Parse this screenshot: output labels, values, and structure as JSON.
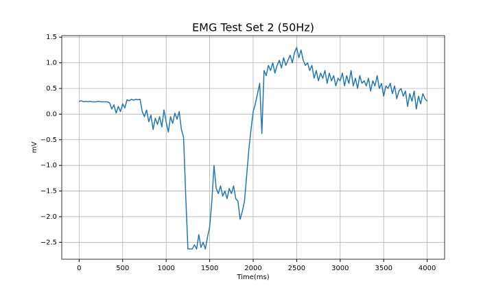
{
  "chart_data": {
    "type": "line",
    "title": "EMG Test Set 2 (50Hz)",
    "x_label": "Time(ms)",
    "y_label": "mV",
    "x": [
      0,
      25,
      50,
      75,
      100,
      125,
      150,
      175,
      200,
      225,
      250,
      275,
      300,
      325,
      350,
      375,
      400,
      425,
      450,
      475,
      500,
      525,
      550,
      575,
      600,
      625,
      650,
      675,
      700,
      725,
      750,
      775,
      800,
      825,
      850,
      875,
      900,
      925,
      950,
      975,
      1000,
      1025,
      1050,
      1075,
      1100,
      1125,
      1150,
      1175,
      1200,
      1225,
      1250,
      1275,
      1300,
      1325,
      1350,
      1375,
      1400,
      1425,
      1450,
      1475,
      1500,
      1525,
      1550,
      1575,
      1600,
      1625,
      1650,
      1675,
      1700,
      1725,
      1750,
      1775,
      1800,
      1825,
      1850,
      1875,
      1900,
      1925,
      1950,
      1975,
      2000,
      2025,
      2050,
      2075,
      2100,
      2125,
      2150,
      2175,
      2200,
      2225,
      2250,
      2275,
      2300,
      2325,
      2350,
      2375,
      2400,
      2425,
      2450,
      2475,
      2500,
      2525,
      2550,
      2575,
      2600,
      2625,
      2650,
      2675,
      2700,
      2725,
      2750,
      2775,
      2800,
      2825,
      2850,
      2875,
      2900,
      2925,
      2950,
      2975,
      3000,
      3025,
      3050,
      3075,
      3100,
      3125,
      3150,
      3175,
      3200,
      3225,
      3250,
      3275,
      3300,
      3325,
      3350,
      3375,
      3400,
      3425,
      3450,
      3475,
      3500,
      3525,
      3550,
      3575,
      3600,
      3625,
      3650,
      3675,
      3700,
      3725,
      3750,
      3775,
      3800,
      3825,
      3850,
      3875,
      3900,
      3925,
      3950,
      3975,
      4000
    ],
    "series": [
      {
        "color": "#1f77b4",
        "values": [
          0.25,
          0.26,
          0.24,
          0.25,
          0.24,
          0.25,
          0.24,
          0.24,
          0.24,
          0.25,
          0.24,
          0.24,
          0.24,
          0.24,
          0.22,
          0.1,
          0.18,
          0.02,
          0.15,
          0.05,
          0.2,
          0.12,
          0.28,
          0.26,
          0.29,
          0.27,
          0.29,
          0.28,
          0.29,
          0.05,
          -0.05,
          0.08,
          -0.15,
          -0.02,
          -0.3,
          -0.08,
          -0.2,
          -0.05,
          -0.25,
          0.08,
          -0.15,
          -0.35,
          -0.05,
          -0.18,
          0.02,
          -0.1,
          0.05,
          -0.3,
          -0.45,
          -1.6,
          -2.63,
          -2.63,
          -2.63,
          -2.55,
          -2.63,
          -2.35,
          -2.6,
          -2.5,
          -2.63,
          -2.4,
          -2.2,
          -1.7,
          -1.0,
          -1.45,
          -1.55,
          -1.4,
          -1.6,
          -1.5,
          -1.65,
          -1.45,
          -1.55,
          -1.4,
          -1.65,
          -1.7,
          -2.05,
          -1.9,
          -1.7,
          -1.2,
          -0.7,
          -0.3,
          0.05,
          0.2,
          0.4,
          0.6,
          -0.38,
          0.85,
          0.75,
          0.95,
          0.85,
          1.0,
          0.8,
          0.95,
          1.05,
          0.9,
          1.1,
          0.95,
          1.05,
          1.15,
          1.0,
          1.2,
          1.3,
          1.1,
          1.25,
          1.05,
          0.95,
          1.0,
          0.85,
          0.95,
          0.7,
          0.85,
          0.65,
          0.8,
          0.7,
          0.85,
          0.6,
          0.8,
          0.65,
          0.75,
          0.55,
          0.7,
          0.65,
          0.8,
          0.55,
          0.75,
          0.6,
          0.85,
          0.55,
          0.7,
          0.5,
          0.75,
          0.6,
          0.65,
          0.55,
          0.7,
          0.45,
          0.65,
          0.55,
          0.75,
          0.5,
          0.6,
          0.35,
          0.55,
          0.5,
          0.6,
          0.4,
          0.55,
          0.3,
          0.45,
          0.5,
          0.35,
          0.45,
          0.15,
          0.4,
          0.25,
          0.45,
          0.1,
          0.35,
          0.2,
          0.4,
          0.3,
          0.25
        ]
      }
    ],
    "xlim": [
      -200,
      4200
    ],
    "ylim": [
      -2.83,
      1.53
    ],
    "xticks": [
      0,
      500,
      1000,
      1500,
      2000,
      2500,
      3000,
      3500,
      4000
    ],
    "yticks": [
      {
        "value": -2.5,
        "label": "−2.5"
      },
      {
        "value": -2,
        "label": "−2.0"
      },
      {
        "value": -1.5,
        "label": "−1.5"
      },
      {
        "value": -1,
        "label": "−1.0"
      },
      {
        "value": -0.5,
        "label": "−0.5"
      },
      {
        "value": 0,
        "label": "0.0"
      },
      0.5,
      {
        "value": 1,
        "label": "1.0"
      },
      1.5
    ],
    "grid": true
  }
}
